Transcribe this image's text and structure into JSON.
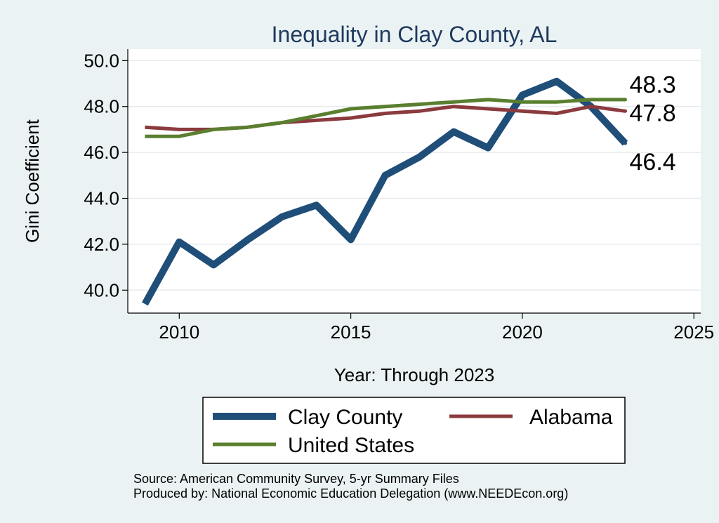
{
  "chart_data": {
    "type": "line",
    "title": "Inequality in Clay County, AL",
    "xlabel": "Year: Through 2023",
    "ylabel": "Gini Coefficient",
    "xlim": [
      2008.5,
      2025.2
    ],
    "ylim": [
      39.0,
      50.5
    ],
    "xticks": [
      2010,
      2015,
      2020,
      2025
    ],
    "yticks": [
      40.0,
      42.0,
      44.0,
      46.0,
      48.0,
      50.0
    ],
    "grid": true,
    "x": [
      2009,
      2010,
      2011,
      2012,
      2013,
      2014,
      2015,
      2016,
      2017,
      2018,
      2019,
      2020,
      2021,
      2022,
      2023
    ],
    "series": [
      {
        "name": "Clay County",
        "color": "#1f4e79",
        "values": [
          39.4,
          42.1,
          41.1,
          42.2,
          43.2,
          43.7,
          42.2,
          45.0,
          45.8,
          46.9,
          46.2,
          48.5,
          49.1,
          48.0,
          46.4
        ],
        "end_label": "46.4"
      },
      {
        "name": "Alabama",
        "color": "#8b3a3e",
        "values": [
          47.1,
          47.0,
          47.0,
          47.1,
          47.3,
          47.4,
          47.5,
          47.7,
          47.8,
          48.0,
          47.9,
          47.8,
          47.7,
          48.0,
          47.8
        ],
        "end_label": "47.8"
      },
      {
        "name": "United States",
        "color": "#5a7f2f",
        "values": [
          46.7,
          46.7,
          47.0,
          47.1,
          47.3,
          47.6,
          47.9,
          48.0,
          48.1,
          48.2,
          48.3,
          48.2,
          48.2,
          48.3,
          48.3
        ],
        "end_label": "48.3"
      }
    ],
    "legend": {
      "placement": "bottom",
      "entries": [
        "Clay County",
        "Alabama",
        "United States"
      ]
    },
    "notes": [
      "Source: American Community Survey, 5-yr Summary Files",
      "Produced by: National Economic Education Delegation (www.NEEDEcon.org)"
    ]
  }
}
